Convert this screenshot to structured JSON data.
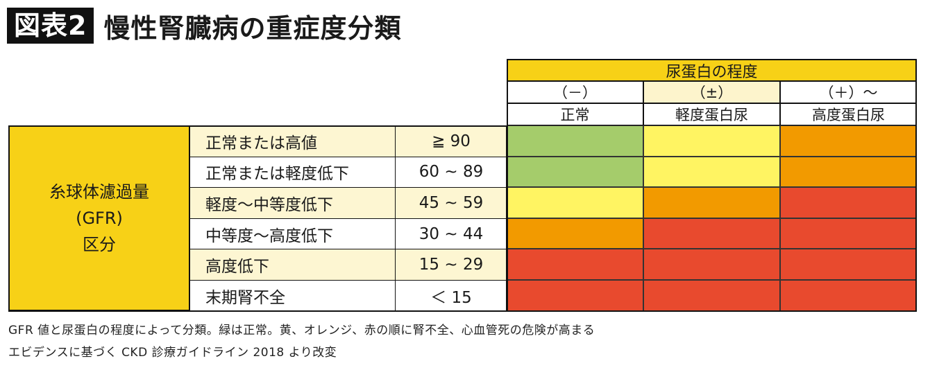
{
  "header": {
    "badge": "図表2",
    "title": "慢性腎臓病の重症度分類"
  },
  "colors": {
    "green": "#a5cc6b",
    "yellow": "#fff462",
    "orange": "#f29a00",
    "red": "#e84a2e",
    "header_yellow": "#f7d117"
  },
  "chart_data": {
    "type": "heatmap",
    "column_group_label": "尿蛋白の程度",
    "columns": [
      {
        "symbol": "（－）",
        "label": "正常"
      },
      {
        "symbol": "（±）",
        "label": "軽度蛋白尿"
      },
      {
        "symbol": "（＋）～",
        "label": "高度蛋白尿"
      }
    ],
    "row_group_label": [
      "糸球体濾過量",
      "(GFR)",
      "区分"
    ],
    "rows": [
      {
        "label": "正常または高値",
        "range": "≧ 90",
        "levels": [
          "green",
          "yellow",
          "orange"
        ]
      },
      {
        "label": "正常または軽度低下",
        "range": "60 ~ 89",
        "levels": [
          "green",
          "yellow",
          "orange"
        ]
      },
      {
        "label": "軽度～中等度低下",
        "range": "45 ~ 59",
        "levels": [
          "yellow",
          "orange",
          "red"
        ]
      },
      {
        "label": "中等度～高度低下",
        "range": "30 ~ 44",
        "levels": [
          "orange",
          "red",
          "red"
        ]
      },
      {
        "label": "高度低下",
        "range": "15 ~ 29",
        "levels": [
          "red",
          "red",
          "red"
        ]
      },
      {
        "label": "末期腎不全",
        "range": "＜ 15",
        "levels": [
          "red",
          "red",
          "red"
        ]
      }
    ]
  },
  "footnote": {
    "line1": "GFR 値と尿蛋白の程度によって分類。緑は正常。黄、オレンジ、赤の順に腎不全、心血管死の危険が高まる",
    "line2": "エビデンスに基づく CKD 診療ガイドライン 2018 より改変"
  }
}
